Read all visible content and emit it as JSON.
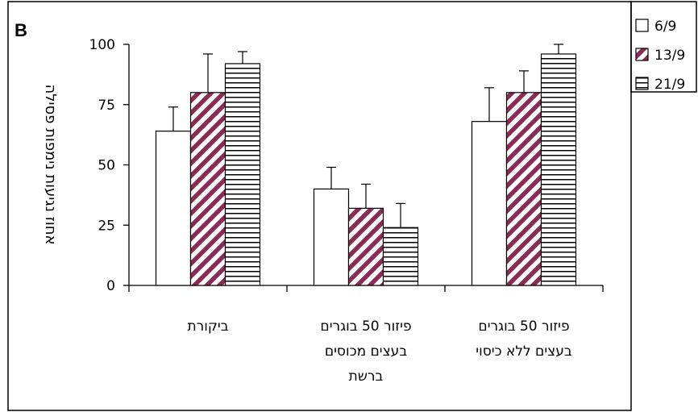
{
  "chart_data": {
    "type": "bar",
    "panel_label": "B",
    "ylabel": "אחוז נגיעות נימפות פסילה",
    "ylim": [
      0,
      100
    ],
    "yticks": [
      0,
      25,
      50,
      75,
      100
    ],
    "categories": [
      [
        "ביקורת"
      ],
      [
        "פיזור 50 בוגרים",
        "בעצים מכוסים",
        "ברשת"
      ],
      [
        "פיזור 50 בוגרים",
        "בעצים ללא כיסוי"
      ]
    ],
    "series": [
      {
        "name": "6/9",
        "pattern": "white",
        "values": [
          64,
          40,
          68
        ],
        "errors": [
          10,
          9,
          14
        ]
      },
      {
        "name": "13/9",
        "pattern": "diagonal",
        "values": [
          80,
          32,
          80
        ],
        "errors": [
          16,
          10,
          9
        ]
      },
      {
        "name": "21/9",
        "pattern": "horizontal",
        "values": [
          92,
          24,
          96
        ],
        "errors": [
          5,
          10,
          4
        ]
      }
    ],
    "grid": false,
    "legend_position": "top-right",
    "colors": {
      "diagonal": "#8a2b56",
      "outline": "#000000",
      "background": "#ffffff"
    }
  }
}
